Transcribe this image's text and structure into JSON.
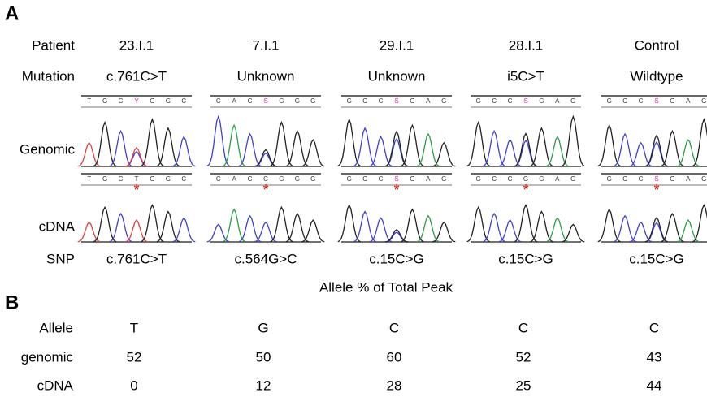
{
  "panel_a": {
    "label": "A",
    "row_labels": [
      "Patient",
      "Mutation",
      "Genomic",
      "cDNA",
      "SNP"
    ],
    "marker": "*",
    "columns": [
      {
        "patient": "23.I.1",
        "mutation": "c.761C>T",
        "genomic_seq": [
          "T",
          "G",
          "C",
          "Y",
          "G",
          "G",
          "C"
        ],
        "cdna_seq": [
          "T",
          "G",
          "C",
          "T",
          "G",
          "G",
          "C"
        ],
        "snp": "c.761C>T"
      },
      {
        "patient": "7.I.1",
        "mutation": "Unknown",
        "genomic_seq": [
          "C",
          "A",
          "C",
          "S",
          "G",
          "G",
          "G"
        ],
        "cdna_seq": [
          "C",
          "A",
          "C",
          "C",
          "G",
          "G",
          "G"
        ],
        "snp": "c.564G>C"
      },
      {
        "patient": "29.I.1",
        "mutation": "Unknown",
        "genomic_seq": [
          "G",
          "C",
          "C",
          "S",
          "G",
          "A",
          "G"
        ],
        "cdna_seq": [
          "G",
          "C",
          "C",
          "S",
          "G",
          "A",
          "G"
        ],
        "snp": "c.15C>G"
      },
      {
        "patient": "28.I.1",
        "mutation": "i5C>T",
        "genomic_seq": [
          "G",
          "C",
          "C",
          "S",
          "G",
          "A",
          "G"
        ],
        "cdna_seq": [
          "G",
          "C",
          "C",
          "G",
          "G",
          "A",
          "G"
        ],
        "snp": "c.15C>G"
      },
      {
        "patient": "Control",
        "mutation": "Wildtype",
        "genomic_seq": [
          "G",
          "C",
          "C",
          "S",
          "G",
          "A",
          "G"
        ],
        "cdna_seq": [
          "G",
          "C",
          "C",
          "S",
          "G",
          "A",
          "G"
        ],
        "snp": "c.15C>G"
      }
    ]
  },
  "panel_b": {
    "label": "B",
    "title": "Allele % of Total Peak",
    "row_labels": [
      "Allele",
      "genomic",
      "cDNA"
    ],
    "columns": [
      {
        "allele": "T",
        "genomic": 52,
        "cdna": 0
      },
      {
        "allele": "G",
        "genomic": 50,
        "cdna": 12
      },
      {
        "allele": "C",
        "genomic": 60,
        "cdna": 28
      },
      {
        "allele": "C",
        "genomic": 52,
        "cdna": 25
      },
      {
        "allele": "C",
        "genomic": 43,
        "cdna": 44
      }
    ]
  }
}
